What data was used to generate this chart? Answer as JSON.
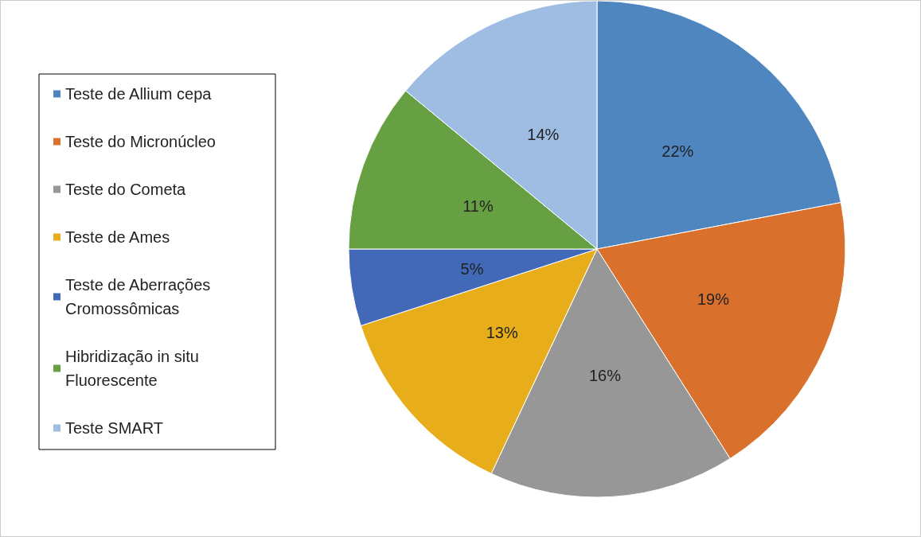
{
  "chart_data": {
    "type": "pie",
    "categories": [
      "Teste de Allium cepa",
      "Teste do Micronúcleo",
      "Teste do Cometa",
      "Teste de Ames",
      "Teste de Aberrações Cromossômicas",
      "Hibridização in situ Fluorescente",
      "Teste SMART"
    ],
    "values": [
      22,
      19,
      16,
      13,
      5,
      11,
      14
    ],
    "colors": [
      "#4f86c0",
      "#d9712c",
      "#979797",
      "#e8ad1a",
      "#4169b8",
      "#67a043",
      "#9fbde2"
    ],
    "value_labels": [
      "22%",
      "19%",
      "16%",
      "13%",
      "5%",
      "11%",
      "14%"
    ],
    "legend": "left"
  }
}
